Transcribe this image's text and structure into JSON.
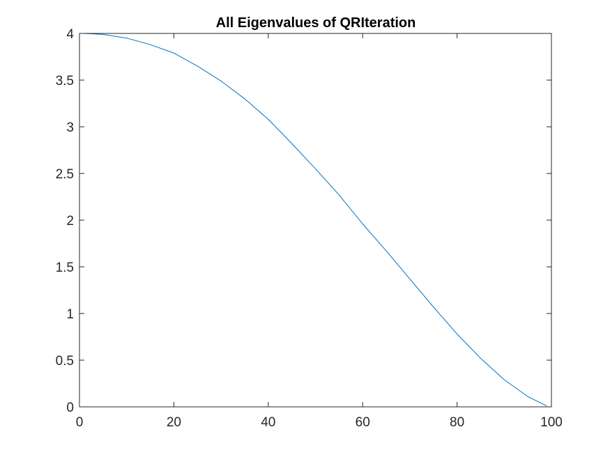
{
  "chart_data": {
    "type": "line",
    "title": "All Eigenvalues of QRIteration",
    "xlabel": "",
    "ylabel": "",
    "xlim": [
      0,
      100
    ],
    "ylim": [
      0,
      4
    ],
    "xticks": [
      0,
      20,
      40,
      60,
      80,
      100
    ],
    "yticks": [
      0,
      0.5,
      1,
      1.5,
      2,
      2.5,
      3,
      3.5,
      4
    ],
    "xtick_labels": [
      "0",
      "20",
      "40",
      "60",
      "80",
      "100"
    ],
    "ytick_labels": [
      "0",
      "0.5",
      "1",
      "1.5",
      "2",
      "2.5",
      "3",
      "3.5",
      "4"
    ],
    "grid": false,
    "series": [
      {
        "color": "#0072BD",
        "x": [
          1,
          5,
          10,
          15,
          20,
          25,
          30,
          35,
          40,
          45,
          50,
          55,
          60,
          65,
          70,
          75,
          80,
          85,
          90,
          95,
          99
        ],
        "y": [
          4.0,
          3.99,
          3.95,
          3.88,
          3.79,
          3.65,
          3.49,
          3.3,
          3.08,
          2.82,
          2.55,
          2.27,
          1.96,
          1.67,
          1.37,
          1.07,
          0.78,
          0.52,
          0.29,
          0.11,
          0.01
        ]
      }
    ]
  }
}
